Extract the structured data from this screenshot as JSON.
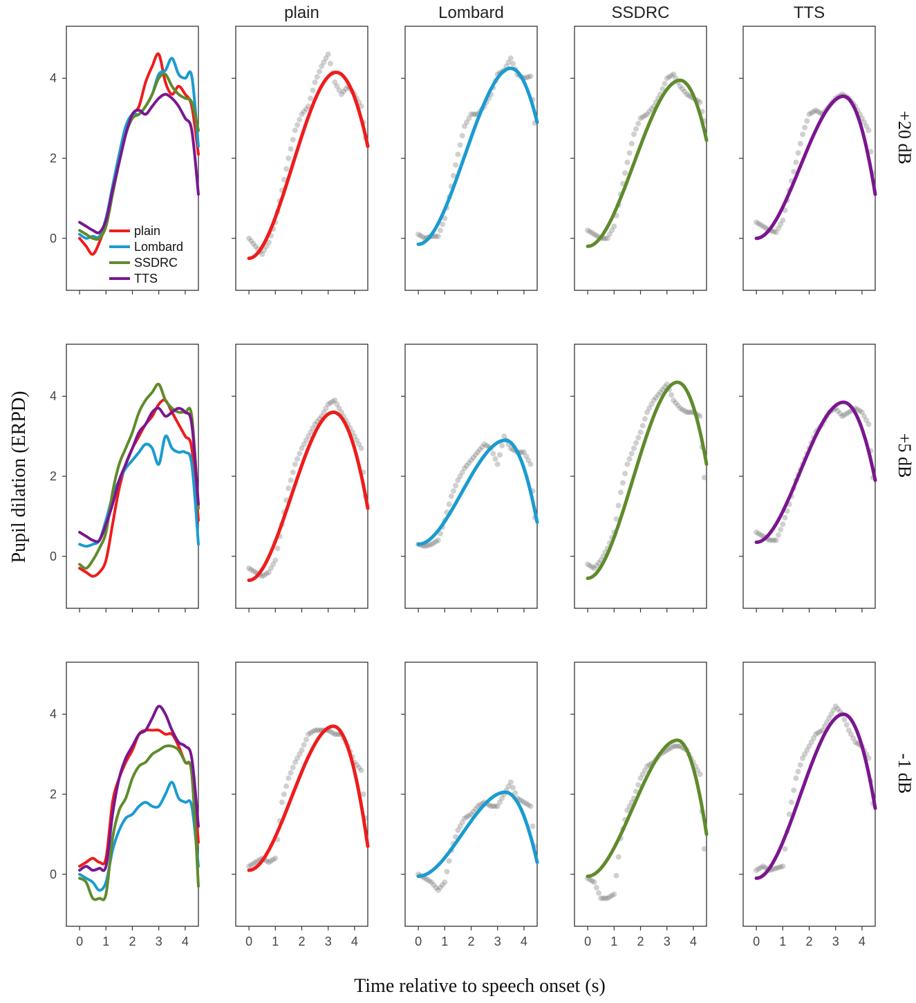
{
  "chart_data": {
    "type": "line",
    "title": "",
    "xlabel": "Time relative to speech onset (s)",
    "ylabel": "Pupil dilation (ERPD)",
    "xlim": [
      -0.5,
      4.5
    ],
    "ylim": [
      -1.3,
      5.3
    ],
    "x_ticks": [
      0,
      1,
      2,
      3,
      4
    ],
    "x_tick_labels": [
      "0",
      "1",
      "2",
      "3",
      "4"
    ],
    "y_ticks": [
      0,
      2,
      4
    ],
    "y_tick_labels": [
      "0",
      "2",
      "4"
    ],
    "column_titles": [
      "",
      "plain",
      "Lombard",
      "SSDRC",
      "TTS"
    ],
    "row_labels": [
      "+20 dB",
      "+5 dB",
      "-1 dB"
    ],
    "legend": {
      "placement": "bottom-left of first panel",
      "entries": [
        "plain",
        "Lombard",
        "SSDRC",
        "TTS"
      ]
    },
    "series_colors": {
      "plain": "#ee1c1c",
      "Lombard": "#1a9bd0",
      "SSDRC": "#5f8b2c",
      "TTS": "#7a168f"
    },
    "observation_color": "#555555",
    "x": [
      0,
      0.25,
      0.5,
      0.75,
      1.0,
      1.25,
      1.5,
      1.75,
      2.0,
      2.25,
      2.5,
      2.75,
      3.0,
      3.25,
      3.5,
      3.75,
      4.0,
      4.25,
      4.5
    ],
    "raw_series": [
      {
        "snr": "+20 dB",
        "series": [
          {
            "name": "plain",
            "values": [
              0.0,
              -0.2,
              -0.4,
              -0.1,
              0.4,
              1.2,
              2.0,
              2.7,
              3.1,
              3.3,
              3.9,
              4.3,
              4.6,
              3.9,
              3.6,
              3.8,
              3.6,
              3.3,
              2.1
            ]
          },
          {
            "name": "Lombard",
            "values": [
              0.1,
              0.0,
              0.05,
              0.05,
              0.5,
              1.3,
              2.1,
              2.8,
              3.1,
              3.1,
              3.3,
              3.6,
              4.1,
              4.2,
              4.5,
              4.1,
              4.0,
              4.05,
              2.3
            ]
          },
          {
            "name": "SSDRC",
            "values": [
              0.2,
              0.1,
              0.0,
              0.0,
              0.3,
              1.1,
              1.9,
              2.6,
              3.0,
              3.1,
              3.3,
              3.6,
              4.0,
              4.1,
              3.8,
              3.6,
              3.5,
              3.4,
              2.7
            ]
          },
          {
            "name": "TTS",
            "values": [
              0.4,
              0.3,
              0.2,
              0.15,
              0.45,
              1.2,
              1.9,
              2.6,
              3.1,
              3.2,
              3.1,
              3.3,
              3.5,
              3.6,
              3.5,
              3.3,
              3.0,
              2.7,
              1.1
            ]
          }
        ]
      },
      {
        "snr": "+5 dB",
        "series": [
          {
            "name": "plain",
            "values": [
              -0.3,
              -0.4,
              -0.5,
              -0.4,
              -0.1,
              0.8,
              1.7,
              2.3,
              2.7,
              3.0,
              3.3,
              3.5,
              3.8,
              3.9,
              3.6,
              3.3,
              3.0,
              2.7,
              0.9
            ]
          },
          {
            "name": "Lombard",
            "values": [
              0.3,
              0.25,
              0.3,
              0.4,
              0.9,
              1.5,
              1.9,
              2.2,
              2.4,
              2.6,
              2.8,
              2.7,
              2.3,
              3.0,
              2.7,
              2.6,
              2.6,
              2.3,
              0.3
            ]
          },
          {
            "name": "SSDRC",
            "values": [
              -0.2,
              -0.3,
              -0.1,
              0.2,
              0.6,
              1.6,
              2.3,
              2.7,
              3.1,
              3.6,
              3.9,
              4.1,
              4.3,
              3.9,
              3.7,
              3.6,
              3.6,
              3.5,
              1.2
            ]
          },
          {
            "name": "TTS",
            "values": [
              0.6,
              0.5,
              0.4,
              0.4,
              0.8,
              1.3,
              1.9,
              2.3,
              2.7,
              3.1,
              3.3,
              3.6,
              3.7,
              3.5,
              3.6,
              3.7,
              3.6,
              3.3,
              1.3
            ]
          }
        ]
      },
      {
        "snr": "-1 dB",
        "series": [
          {
            "name": "plain",
            "values": [
              0.2,
              0.3,
              0.4,
              0.3,
              0.4,
              1.8,
              2.4,
              2.8,
              3.1,
              3.5,
              3.6,
              3.6,
              3.6,
              3.5,
              3.5,
              3.2,
              2.8,
              2.6,
              0.8
            ]
          },
          {
            "name": "Lombard",
            "values": [
              0.0,
              -0.1,
              -0.2,
              -0.4,
              -0.2,
              0.6,
              1.1,
              1.4,
              1.5,
              1.7,
              1.8,
              1.7,
              1.7,
              2.0,
              2.3,
              1.9,
              1.8,
              1.7,
              0.2
            ]
          },
          {
            "name": "SSDRC",
            "values": [
              -0.1,
              -0.2,
              -0.6,
              -0.6,
              -0.5,
              0.9,
              1.6,
              1.9,
              2.4,
              2.7,
              2.8,
              3.0,
              3.1,
              3.2,
              3.2,
              3.1,
              2.8,
              2.5,
              -0.3
            ]
          },
          {
            "name": "TTS",
            "values": [
              0.1,
              0.2,
              0.1,
              0.15,
              0.2,
              1.5,
              2.4,
              2.9,
              3.2,
              3.5,
              3.6,
              3.9,
              4.2,
              4.0,
              3.6,
              3.3,
              3.2,
              2.9,
              1.2
            ]
          }
        ]
      }
    ],
    "fitted_curves": [
      {
        "snr": "+20 dB",
        "condition": "plain",
        "start": -0.5,
        "peak_x": 3.3,
        "peak_y": 4.15,
        "end": 2.3
      },
      {
        "snr": "+20 dB",
        "condition": "Lombard",
        "start": -0.15,
        "peak_x": 3.5,
        "peak_y": 4.25,
        "end": 2.9
      },
      {
        "snr": "+20 dB",
        "condition": "SSDRC",
        "start": -0.2,
        "peak_x": 3.5,
        "peak_y": 3.95,
        "end": 2.45
      },
      {
        "snr": "+20 dB",
        "condition": "TTS",
        "start": 0.0,
        "peak_x": 3.3,
        "peak_y": 3.55,
        "end": 1.1
      },
      {
        "snr": "+5 dB",
        "condition": "plain",
        "start": -0.6,
        "peak_x": 3.2,
        "peak_y": 3.6,
        "end": 1.2
      },
      {
        "snr": "+5 dB",
        "condition": "Lombard",
        "start": 0.3,
        "peak_x": 3.3,
        "peak_y": 2.9,
        "end": 0.85
      },
      {
        "snr": "+5 dB",
        "condition": "SSDRC",
        "start": -0.55,
        "peak_x": 3.4,
        "peak_y": 4.35,
        "end": 2.3
      },
      {
        "snr": "+5 dB",
        "condition": "TTS",
        "start": 0.35,
        "peak_x": 3.3,
        "peak_y": 3.85,
        "end": 1.9
      },
      {
        "snr": "-1 dB",
        "condition": "plain",
        "start": 0.1,
        "peak_x": 3.2,
        "peak_y": 3.7,
        "end": 0.7
      },
      {
        "snr": "-1 dB",
        "condition": "Lombard",
        "start": -0.05,
        "peak_x": 3.3,
        "peak_y": 2.05,
        "end": 0.3
      },
      {
        "snr": "-1 dB",
        "condition": "SSDRC",
        "start": -0.05,
        "peak_x": 3.4,
        "peak_y": 3.35,
        "end": 1.0
      },
      {
        "snr": "-1 dB",
        "condition": "TTS",
        "start": -0.1,
        "peak_x": 3.3,
        "peak_y": 4.0,
        "end": 1.65
      }
    ]
  }
}
